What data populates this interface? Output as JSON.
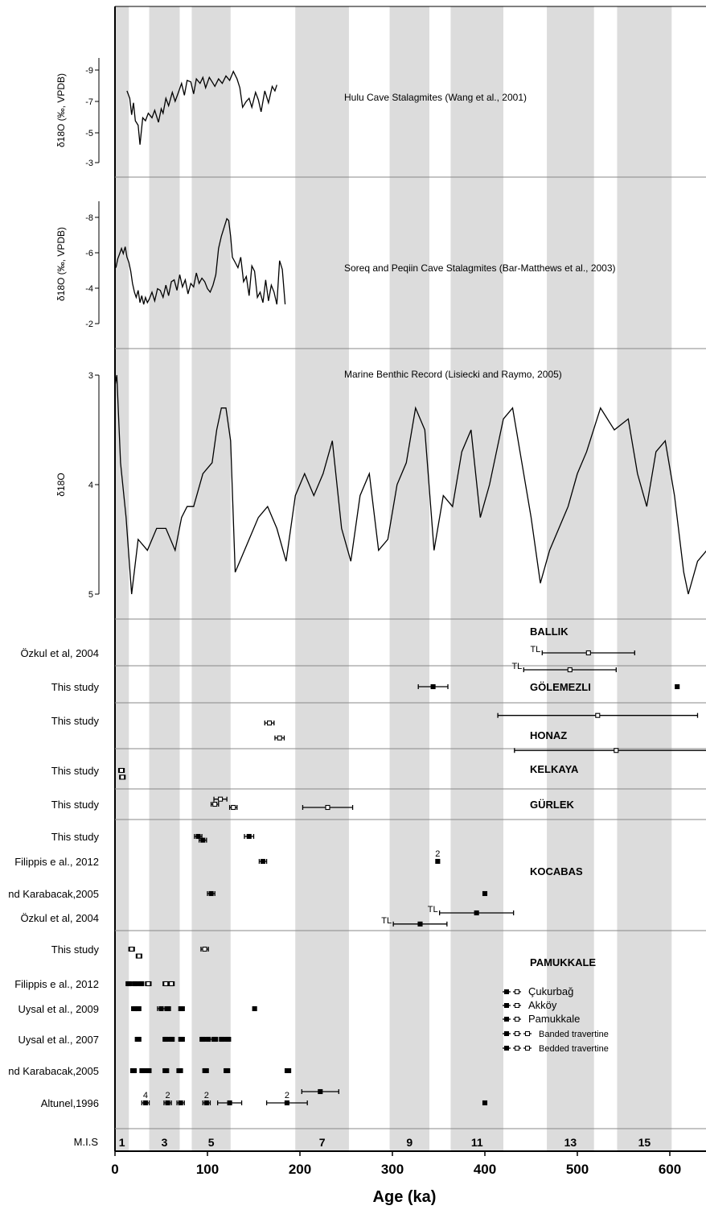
{
  "colors": {
    "band": "#dcdcdc",
    "frame": "#000000",
    "divider": "#888888",
    "line": "#000000"
  },
  "chart_data": {
    "type": "line",
    "xlabel": "Age (ka)",
    "xlim": [
      0,
      650
    ],
    "x_ticks": [
      0,
      100,
      200,
      300,
      400,
      500,
      600
    ],
    "mis": {
      "row_label": "M.I.S",
      "stages": [
        {
          "label": "1",
          "range": [
            0,
            15
          ]
        },
        {
          "label": "3",
          "range": [
            37,
            70
          ]
        },
        {
          "label": "5",
          "range": [
            83,
            125
          ]
        },
        {
          "label": "7",
          "range": [
            195,
            253
          ]
        },
        {
          "label": "9",
          "range": [
            297,
            340
          ]
        },
        {
          "label": "11",
          "range": [
            363,
            420
          ]
        },
        {
          "label": "13",
          "range": [
            467,
            518
          ]
        },
        {
          "label": "15",
          "range": [
            543,
            602
          ]
        }
      ]
    },
    "panels": [
      {
        "title": "Hulu Cave Stalagmites (Wang et al., 2001)",
        "ylabel": "δ18O (‰, VPDB)",
        "ylim": [
          -3,
          -10
        ],
        "y_ticks": [
          "-9",
          "-7",
          "-5",
          "-3"
        ],
        "series": [
          {
            "x": [
              13,
              16,
              18,
              20,
              22,
              25,
              27,
              30,
              33,
              36,
              40,
              43,
              47,
              50,
              52,
              55,
              58,
              62,
              65,
              68,
              72,
              75,
              78,
              82,
              85,
              88,
              92,
              95,
              98,
              102,
              105,
              108,
              112,
              116,
              120,
              124,
              128,
              132,
              135,
              138,
              142,
              145,
              148,
              152,
              155,
              158,
              162,
              166,
              170,
              173,
              175
            ],
            "y": [
              -7.8,
              -7.3,
              -6.2,
              -7.0,
              -5.8,
              -5.5,
              -4.2,
              -6.0,
              -5.8,
              -6.3,
              -6.0,
              -6.5,
              -5.7,
              -6.6,
              -6.3,
              -7.3,
              -6.8,
              -7.7,
              -7.1,
              -7.6,
              -8.3,
              -7.5,
              -8.5,
              -8.4,
              -7.6,
              -8.6,
              -8.3,
              -8.7,
              -8.0,
              -8.7,
              -8.4,
              -8.1,
              -8.6,
              -8.3,
              -8.8,
              -8.5,
              -9.1,
              -8.6,
              -8.0,
              -6.7,
              -7.1,
              -7.3,
              -6.7,
              -7.7,
              -7.2,
              -6.4,
              -7.8,
              -7.0,
              -8.1,
              -7.8,
              -8.2
            ]
          }
        ]
      },
      {
        "title": "Soreq and Peqiin Cave Stalagmites (Bar-Matthews et al., 2003)",
        "ylabel": "δ18O (‰, VPDB)",
        "ylim": [
          -2,
          -9
        ],
        "y_ticks": [
          "-8",
          "-6",
          "-4",
          "-2"
        ],
        "series": [
          {
            "x": [
              1,
              3,
              5,
              7,
              9,
              11,
              13,
              15,
              17,
              19,
              21,
              23,
              25,
              27,
              29,
              31,
              33,
              35,
              37,
              40,
              43,
              46,
              49,
              52,
              55,
              58,
              61,
              64,
              67,
              70,
              73,
              76,
              79,
              82,
              85,
              88,
              91,
              94,
              97,
              100,
              103,
              106,
              109,
              112,
              115,
              118,
              121,
              123,
              125,
              127,
              130,
              133,
              136,
              139,
              142,
              145,
              148,
              151,
              154,
              157,
              160,
              163,
              166,
              169,
              172,
              175,
              178,
              181,
              184
            ],
            "y": [
              -5.2,
              -5.7,
              -6.0,
              -6.3,
              -6.0,
              -6.4,
              -5.8,
              -5.5,
              -5.0,
              -4.3,
              -3.8,
              -3.5,
              -3.9,
              -3.2,
              -3.6,
              -3.1,
              -3.5,
              -3.2,
              -3.4,
              -3.8,
              -3.3,
              -4.0,
              -3.9,
              -3.5,
              -4.2,
              -3.6,
              -4.4,
              -4.5,
              -3.9,
              -4.8,
              -4.1,
              -4.5,
              -3.7,
              -4.3,
              -4.1,
              -4.9,
              -4.3,
              -4.6,
              -4.4,
              -4.0,
              -3.8,
              -4.2,
              -4.8,
              -6.3,
              -7.0,
              -7.5,
              -8.0,
              -7.9,
              -7.0,
              -5.8,
              -5.5,
              -5.2,
              -5.8,
              -4.4,
              -4.7,
              -3.6,
              -5.3,
              -5.0,
              -3.5,
              -3.8,
              -3.2,
              -4.5,
              -3.3,
              -4.2,
              -3.8,
              -3.1,
              -5.6,
              -5.1,
              -3.1
            ]
          }
        ]
      },
      {
        "title": "Marine Benthic Record (Lisiecki and Raymo, 2005)",
        "ylabel": "δ18O",
        "ylim": [
          5,
          3
        ],
        "y_ticks": [
          "3",
          "4",
          "5"
        ],
        "series": [
          {
            "x": [
              0,
              2,
              6,
              12,
              18,
              25,
              35,
              45,
              55,
              65,
              72,
              78,
              85,
              95,
              105,
              110,
              115,
              120,
              125,
              130,
              135,
              145,
              155,
              165,
              175,
              185,
              195,
              205,
              215,
              225,
              235,
              245,
              255,
              265,
              275,
              285,
              295,
              305,
              315,
              325,
              335,
              345,
              355,
              365,
              375,
              385,
              395,
              405,
              420,
              430,
              440,
              450,
              460,
              470,
              480,
              490,
              500,
              510,
              525,
              540,
              555,
              565,
              575,
              585,
              595,
              605,
              615,
              620,
              630,
              640,
              650
            ],
            "y": [
              3.1,
              3.0,
              3.8,
              4.3,
              5.0,
              4.5,
              4.6,
              4.4,
              4.4,
              4.6,
              4.3,
              4.2,
              4.2,
              3.9,
              3.8,
              3.5,
              3.3,
              3.3,
              3.6,
              4.8,
              4.7,
              4.5,
              4.3,
              4.2,
              4.4,
              4.7,
              4.1,
              3.9,
              4.1,
              3.9,
              3.6,
              4.4,
              4.7,
              4.1,
              3.9,
              4.6,
              4.5,
              4.0,
              3.8,
              3.3,
              3.5,
              4.6,
              4.1,
              4.2,
              3.7,
              3.5,
              4.3,
              4.0,
              3.4,
              3.3,
              3.8,
              4.3,
              4.9,
              4.6,
              4.4,
              4.2,
              3.9,
              3.7,
              3.3,
              3.5,
              3.4,
              3.9,
              4.2,
              3.7,
              3.6,
              4.1,
              4.8,
              5.0,
              4.7,
              4.6,
              4.7
            ]
          }
        ]
      }
    ],
    "sites": [
      {
        "name": "BALLIK",
        "refs": [
          "Özkul et al, 2004"
        ]
      },
      {
        "name": "GÖLEMEZLI",
        "refs": [
          "This study"
        ]
      },
      {
        "name": "HONAZ",
        "refs": [
          "This study"
        ]
      },
      {
        "name": "KELKAYA",
        "refs": [
          "This study"
        ]
      },
      {
        "name": "GÜRLEK",
        "refs": [
          "This study"
        ]
      },
      {
        "name": "KOCABAS",
        "refs": [
          "This study",
          "Filippis e al., 2012",
          "nd Karabacak,2005",
          "Özkul et al, 2004"
        ]
      },
      {
        "name": "PAMUKKALE",
        "refs": [
          "This study",
          "Filippis e al., 2012",
          "Uysal et al., 2009",
          "Uysal et al., 2007",
          "nd Karabacak,2005",
          "Altunel,1996"
        ]
      }
    ],
    "ages": [
      {
        "row": 0,
        "age": 512,
        "err": 50,
        "style": "open",
        "tag": "TL"
      },
      {
        "row": 0.5,
        "age": 492,
        "err": 50,
        "style": "open",
        "tag": "TL"
      },
      {
        "row": 1,
        "age": 344,
        "err": 16,
        "style": "filled"
      },
      {
        "row": 1,
        "age": 608,
        "err": 0,
        "style": "filled"
      },
      {
        "row": 1.85,
        "age": 522,
        "err": 108,
        "style": "open"
      },
      {
        "row": 2.05,
        "age": 167,
        "err": 5,
        "style": "open"
      },
      {
        "row": 2.35,
        "age": 178,
        "err": 5,
        "style": "open"
      },
      {
        "row": 2.6,
        "age": 542,
        "err": 110,
        "style": "open"
      },
      {
        "row": 3,
        "age": 7,
        "err": 3,
        "style": "open"
      },
      {
        "row": 3.2,
        "age": 8,
        "err": 3,
        "style": "open"
      },
      {
        "row": 3.85,
        "age": 114,
        "err": 7,
        "style": "open"
      },
      {
        "row": 4,
        "age": 108,
        "err": 4,
        "style": "open"
      },
      {
        "row": 4.1,
        "age": 128,
        "err": 4,
        "style": "open"
      },
      {
        "row": 4.1,
        "age": 230,
        "err": 27,
        "style": "open"
      },
      {
        "row": 5,
        "age": 90,
        "err": 4,
        "style": "filled"
      },
      {
        "row": 5.15,
        "age": 95,
        "err": 4,
        "style": "filled"
      },
      {
        "row": 5,
        "age": 145,
        "err": 5,
        "style": "filled"
      },
      {
        "row": 6,
        "age": 160,
        "err": 4,
        "style": "filled"
      },
      {
        "row": 6,
        "age": 349,
        "err": 0,
        "style": "filled",
        "tag": "2"
      },
      {
        "row": 7,
        "age": 104,
        "err": 4,
        "style": "filled"
      },
      {
        "row": 7,
        "age": 400,
        "err": 0,
        "style": "filled"
      },
      {
        "row": 7.8,
        "age": 391,
        "err": 40,
        "style": "filled",
        "tag": "TL"
      },
      {
        "row": 8.2,
        "age": 330,
        "err": 29,
        "style": "filled",
        "tag": "TL"
      },
      {
        "row": 9,
        "age": 18,
        "err": 3,
        "style": "open"
      },
      {
        "row": 9.2,
        "age": 26,
        "err": 3,
        "style": "open"
      },
      {
        "row": 9,
        "age": 97,
        "err": 4,
        "style": "open"
      },
      {
        "row": 10,
        "age": 15,
        "err": 3,
        "style": "filled"
      },
      {
        "row": 10,
        "age": 22,
        "err": 3,
        "style": "filled"
      },
      {
        "row": 10,
        "age": 28,
        "err": 3,
        "style": "filled"
      },
      {
        "row": 10,
        "age": 36,
        "err": 3,
        "style": "open"
      },
      {
        "row": 10,
        "age": 55,
        "err": 3,
        "style": "open"
      },
      {
        "row": 10,
        "age": 61,
        "err": 3,
        "style": "open"
      },
      {
        "row": 11,
        "age": 21,
        "err": 3,
        "style": "filled"
      },
      {
        "row": 11,
        "age": 25,
        "err": 3,
        "style": "filled"
      },
      {
        "row": 11,
        "age": 50,
        "err": 4,
        "style": "filled"
      },
      {
        "row": 11,
        "age": 57,
        "err": 3,
        "style": "filled"
      },
      {
        "row": 11,
        "age": 72,
        "err": 3,
        "style": "filled"
      },
      {
        "row": 11,
        "age": 151,
        "err": 0,
        "style": "filled"
      },
      {
        "row": 12,
        "age": 25,
        "err": 3,
        "style": "filled"
      },
      {
        "row": 12,
        "age": 55,
        "err": 3,
        "style": "filled"
      },
      {
        "row": 12,
        "age": 61,
        "err": 3,
        "style": "filled"
      },
      {
        "row": 12,
        "age": 72,
        "err": 3,
        "style": "filled"
      },
      {
        "row": 12,
        "age": 95,
        "err": 3,
        "style": "filled"
      },
      {
        "row": 12,
        "age": 101,
        "err": 4,
        "style": "filled"
      },
      {
        "row": 12,
        "age": 108,
        "err": 3,
        "style": "filled"
      },
      {
        "row": 12,
        "age": 116,
        "err": 3,
        "style": "filled"
      },
      {
        "row": 12,
        "age": 122,
        "err": 3,
        "style": "filled"
      },
      {
        "row": 13,
        "age": 20,
        "err": 3,
        "style": "filled"
      },
      {
        "row": 13,
        "age": 30,
        "err": 3,
        "style": "filled"
      },
      {
        "row": 13,
        "age": 36,
        "err": 3,
        "style": "filled"
      },
      {
        "row": 13,
        "age": 55,
        "err": 3,
        "style": "filled"
      },
      {
        "row": 13,
        "age": 70,
        "err": 3,
        "style": "filled"
      },
      {
        "row": 13,
        "age": 98,
        "err": 3,
        "style": "filled"
      },
      {
        "row": 13,
        "age": 121,
        "err": 3,
        "style": "filled"
      },
      {
        "row": 13,
        "age": 187,
        "err": 3,
        "style": "filled"
      },
      {
        "row": 14,
        "age": 33,
        "err": 4,
        "style": "filled",
        "tag": "4"
      },
      {
        "row": 14,
        "age": 57,
        "err": 4,
        "style": "filled",
        "tag": "2"
      },
      {
        "row": 14,
        "age": 71,
        "err": 4,
        "style": "filled"
      },
      {
        "row": 14,
        "age": 99,
        "err": 4,
        "style": "filled",
        "tag": "2"
      },
      {
        "row": 14,
        "age": 124,
        "err": 13,
        "style": "filled"
      },
      {
        "row": 14,
        "age": 186,
        "err": 22,
        "style": "filled",
        "tag": "2"
      },
      {
        "row": 13.65,
        "age": 222,
        "err": 20,
        "style": "filled"
      },
      {
        "row": 14,
        "age": 400,
        "err": 0,
        "style": "filled"
      }
    ],
    "legend": [
      {
        "label": "Çukurbağ",
        "style": "small"
      },
      {
        "label": "Akköy",
        "style": "small"
      },
      {
        "label": "Pamukkale",
        "style": "small"
      },
      {
        "label": "Banded travertine",
        "style": "tiny"
      },
      {
        "label": "Bedded travertine",
        "style": "tiny"
      }
    ]
  }
}
